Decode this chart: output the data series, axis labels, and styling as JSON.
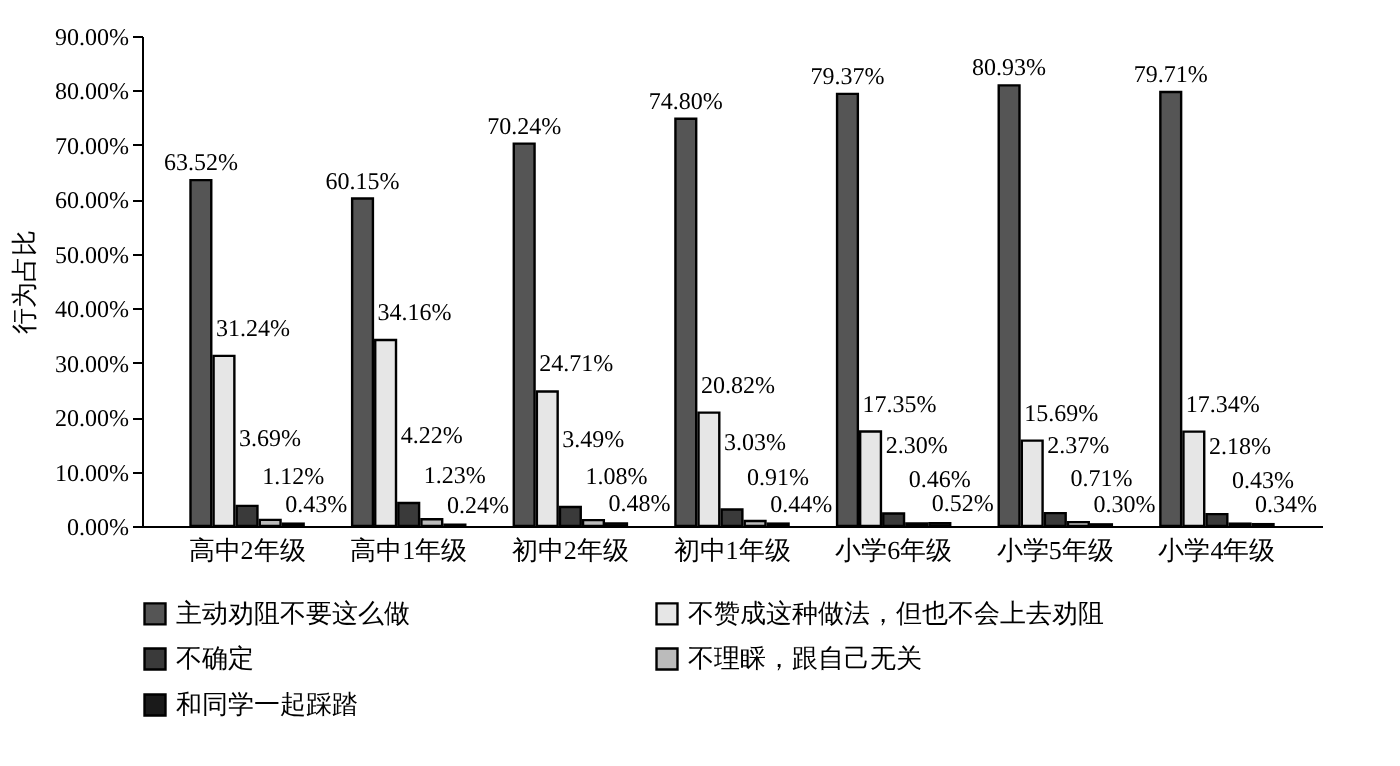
{
  "chart_data": {
    "type": "bar",
    "ylabel": "行为占比",
    "categories": [
      "高中2年级",
      "高中1年级",
      "初中2年级",
      "初中1年级",
      "小学6年级",
      "小学5年级",
      "小学4年级"
    ],
    "series": [
      {
        "name": "主动劝阻不要这么做",
        "color": "#555555",
        "values": [
          63.52,
          60.15,
          70.24,
          74.8,
          79.37,
          80.93,
          79.71
        ],
        "value_labels": [
          "63.52%",
          "60.15%",
          "70.24%",
          "74.80%",
          "79.37%",
          "80.93%",
          "79.71%"
        ]
      },
      {
        "name": "不赞成这种做法，但也不会上去劝阻",
        "color": "#e6e6e6",
        "values": [
          31.24,
          34.16,
          24.71,
          20.82,
          17.35,
          15.69,
          17.34
        ],
        "value_labels": [
          "31.24%",
          "34.16%",
          "24.71%",
          "20.82%",
          "17.35%",
          "15.69%",
          "17.34%"
        ]
      },
      {
        "name": "不确定",
        "color": "#3a3a3a",
        "values": [
          3.69,
          4.22,
          3.49,
          3.03,
          2.3,
          2.37,
          2.18
        ],
        "value_labels": [
          "3.69%",
          "4.22%",
          "3.49%",
          "3.03%",
          "2.30%",
          "2.37%",
          "2.18%"
        ]
      },
      {
        "name": "不理睬，跟自己无关",
        "color": "#bbbbbb",
        "values": [
          1.12,
          1.23,
          1.08,
          0.91,
          0.46,
          0.71,
          0.43
        ],
        "value_labels": [
          "1.12%",
          "1.23%",
          "1.08%",
          "0.91%",
          "0.46%",
          "0.71%",
          "0.43%"
        ]
      },
      {
        "name": "和同学一起踩踏",
        "color": "#1a1a1a",
        "values": [
          0.43,
          0.24,
          0.48,
          0.44,
          0.52,
          0.3,
          0.34
        ],
        "value_labels": [
          "0.43%",
          "0.24%",
          "0.48%",
          "0.44%",
          "0.52%",
          "0.30%",
          "0.34%"
        ]
      }
    ],
    "ylim": [
      0,
      90
    ],
    "yticks": [
      {
        "value": 0,
        "label": "0.00%"
      },
      {
        "value": 10,
        "label": "10.00%"
      },
      {
        "value": 20,
        "label": "20.00%"
      },
      {
        "value": 30,
        "label": "30.00%"
      },
      {
        "value": 40,
        "label": "40.00%"
      },
      {
        "value": 50,
        "label": "50.00%"
      },
      {
        "value": 60,
        "label": "60.00%"
      },
      {
        "value": 70,
        "label": "70.00%"
      },
      {
        "value": 80,
        "label": "80.00%"
      },
      {
        "value": 90,
        "label": "90.00%"
      }
    ],
    "grid": false,
    "legend": "bottom"
  }
}
